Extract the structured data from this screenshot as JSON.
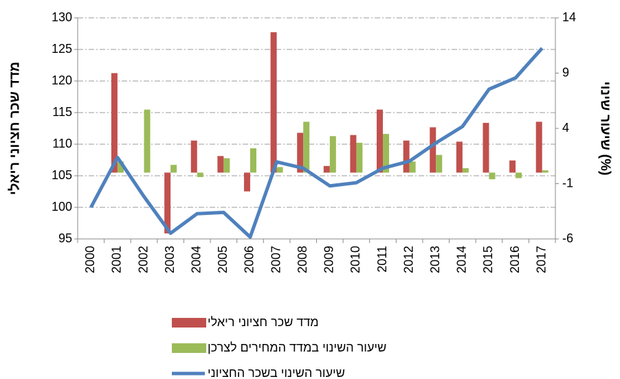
{
  "chart_data": {
    "type": "bar-line",
    "ylabel": "מדד שכר חציוני ריאלי",
    "y2label": "שיעור שינוי (%)",
    "categories": [
      "2000",
      "2001",
      "2002",
      "2003",
      "2004",
      "2005",
      "2006",
      "2007",
      "2008",
      "2009",
      "2010",
      "2011",
      "2012",
      "2013",
      "2014",
      "2015",
      "2016",
      "2017"
    ],
    "series": [
      {
        "name": "מדד שכר חציוני ריאלי",
        "type": "bar",
        "axis": "y2",
        "color": "#c0504d",
        "values": [
          null,
          9.0,
          null,
          -5.5,
          2.9,
          1.5,
          -1.7,
          12.7,
          3.6,
          0.6,
          3.4,
          5.7,
          2.9,
          4.1,
          2.8,
          4.5,
          1.1,
          4.6
        ]
      },
      {
        "name": "שיעור השינוי במדד המחירים לצרכן",
        "type": "bar",
        "axis": "y2",
        "color": "#9bbb59",
        "values": [
          null,
          1.0,
          5.7,
          0.7,
          -0.4,
          1.3,
          2.2,
          0.5,
          4.6,
          3.3,
          2.7,
          3.5,
          1.0,
          1.6,
          0.4,
          -0.6,
          -0.5,
          0.2
        ]
      },
      {
        "name": "שיעור השינוי בשכר החציוני",
        "type": "line",
        "axis": "y",
        "color": "#4f81bd",
        "values": [
          100,
          107.9,
          101.7,
          95.9,
          99.0,
          99.2,
          95.3,
          107.2,
          106.2,
          103.4,
          103.9,
          106.2,
          107.3,
          110.2,
          112.8,
          118.7,
          120.5,
          125.2
        ]
      }
    ],
    "ylim": [
      95,
      130
    ],
    "yticks": [
      95,
      100,
      105,
      110,
      115,
      120,
      125,
      130
    ],
    "y2lim": [
      -6,
      14
    ],
    "y2ticks": [
      -6,
      -1,
      4,
      9,
      14
    ],
    "grid": true,
    "legend": "bottom"
  }
}
